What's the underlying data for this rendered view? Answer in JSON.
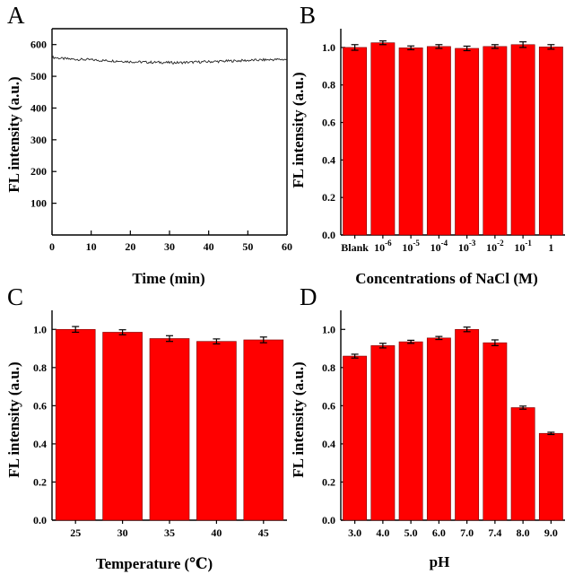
{
  "colors": {
    "bar": "#ff0000",
    "line": "#222222",
    "axis": "#000000"
  },
  "chart_data": [
    {
      "panel": "A",
      "type": "line",
      "xlabel": "Time (min)",
      "ylabel": "FL intensity (a.u.)",
      "xlim": [
        0,
        60
      ],
      "ylim": [
        0,
        650
      ],
      "xticks": [
        0,
        10,
        20,
        30,
        40,
        50,
        60
      ],
      "yticks": [
        100,
        200,
        300,
        400,
        500,
        600
      ],
      "x": [
        0,
        2.5,
        5,
        7.5,
        10,
        12.5,
        15,
        17.5,
        20,
        22.5,
        25,
        27.5,
        30,
        32.5,
        35,
        37.5,
        40,
        42.5,
        45,
        47.5,
        50,
        52.5,
        55,
        57.5,
        60
      ],
      "y": [
        560,
        556,
        554,
        553,
        552,
        550,
        549,
        548,
        546,
        545,
        544,
        544,
        543,
        543,
        544,
        545,
        546,
        547,
        548,
        549,
        550,
        551,
        552,
        553,
        553
      ]
    },
    {
      "panel": "B",
      "type": "bar",
      "xlabel": "Concentrations of  NaCl (M)",
      "ylabel": "FL intensity (a.u.)",
      "ylim": [
        0,
        1.1
      ],
      "yticks": [
        "0.0",
        "0.2",
        "0.4",
        "0.6",
        "0.8",
        "1.0"
      ],
      "categories": [
        "Blank",
        "10^-6",
        "10^-5",
        "10^-4",
        "10^-3",
        "10^-2",
        "10^-1",
        "1"
      ],
      "values": [
        1.0,
        1.025,
        0.998,
        1.005,
        0.995,
        1.005,
        1.015,
        1.003
      ],
      "errors": [
        0.015,
        0.01,
        0.01,
        0.01,
        0.012,
        0.01,
        0.015,
        0.012
      ]
    },
    {
      "panel": "C",
      "type": "bar",
      "xlabel": "Temperature (℃)",
      "ylabel": "FL intensity (a.u.)",
      "ylim": [
        0,
        1.1
      ],
      "yticks": [
        "0.0",
        "0.2",
        "0.4",
        "0.6",
        "0.8",
        "1.0"
      ],
      "categories": [
        "25",
        "30",
        "35",
        "40",
        "45"
      ],
      "values": [
        1.0,
        0.985,
        0.952,
        0.937,
        0.945
      ],
      "errors": [
        0.015,
        0.013,
        0.015,
        0.013,
        0.015
      ]
    },
    {
      "panel": "D",
      "type": "bar",
      "xlabel": "pH",
      "ylabel": "FL intensity (a.u.)",
      "ylim": [
        0,
        1.1
      ],
      "yticks": [
        "0.0",
        "0.2",
        "0.4",
        "0.6",
        "0.8",
        "1.0"
      ],
      "categories": [
        "3.0",
        "4.0",
        "5.0",
        "6.0",
        "7.0",
        "7.4",
        "8.0",
        "9.0"
      ],
      "values": [
        0.86,
        0.915,
        0.935,
        0.955,
        1.0,
        0.93,
        0.59,
        0.455
      ],
      "errors": [
        0.01,
        0.012,
        0.008,
        0.008,
        0.012,
        0.015,
        0.008,
        0.006
      ]
    }
  ]
}
